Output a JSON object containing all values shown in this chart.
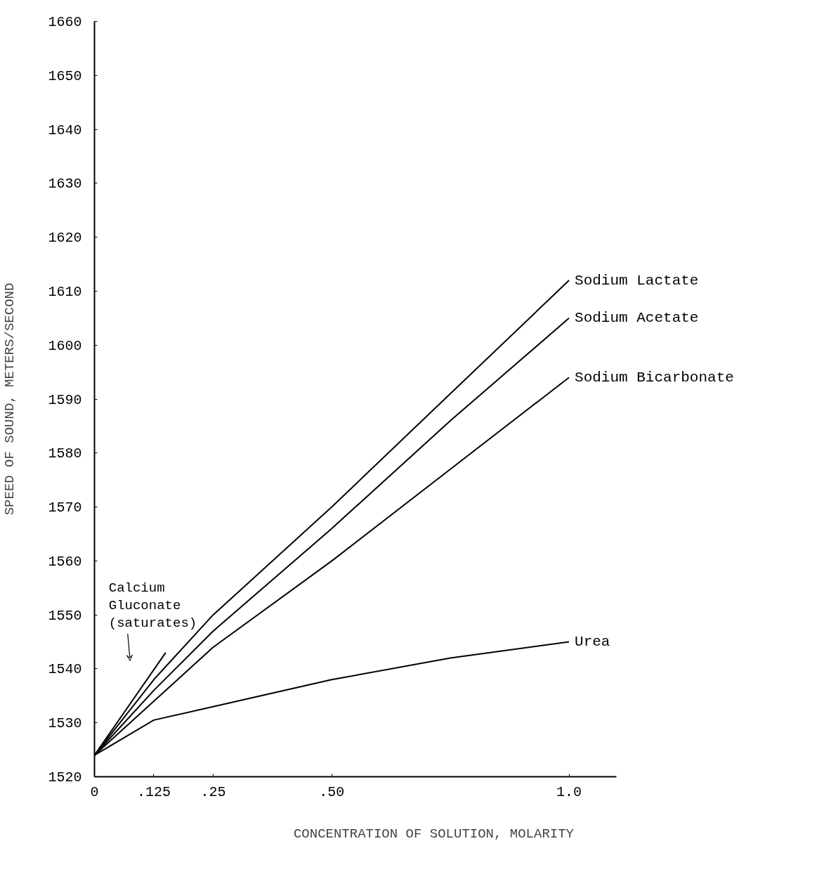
{
  "chart_data": {
    "type": "line",
    "xlabel": "CONCENTRATION OF SOLUTION, MOLARITY",
    "ylabel": "SPEED OF SOUND, METERS/SECOND",
    "xlim": [
      0,
      1.1
    ],
    "ylim": [
      1520,
      1660
    ],
    "xticks": [
      {
        "value": 0,
        "label": "0"
      },
      {
        "value": 0.125,
        "label": ".125"
      },
      {
        "value": 0.25,
        "label": ".25"
      },
      {
        "value": 0.5,
        "label": ".50"
      },
      {
        "value": 1.0,
        "label": "1.0"
      }
    ],
    "yticks": [
      1520,
      1530,
      1540,
      1550,
      1560,
      1570,
      1580,
      1590,
      1600,
      1610,
      1620,
      1630,
      1640,
      1650,
      1660
    ],
    "grid": false,
    "legend": false,
    "marker": "none",
    "line_style": "solid",
    "series": [
      {
        "name": "Calcium Gluconate (saturates)",
        "color": "#000000",
        "x": [
          0,
          0.15
        ],
        "values": [
          1524,
          1543
        ]
      },
      {
        "name": "Sodium Lactate",
        "color": "#000000",
        "x": [
          0,
          0.125,
          0.25,
          0.5,
          0.75,
          1.0
        ],
        "values": [
          1524,
          1538,
          1550,
          1570,
          1591,
          1612
        ]
      },
      {
        "name": "Sodium Acetate",
        "color": "#000000",
        "x": [
          0,
          0.125,
          0.25,
          0.5,
          0.75,
          1.0
        ],
        "values": [
          1524,
          1536,
          1547,
          1566,
          1586,
          1605
        ]
      },
      {
        "name": "Sodium Bicarbonate",
        "color": "#000000",
        "x": [
          0,
          0.125,
          0.25,
          0.5,
          0.75,
          1.0
        ],
        "values": [
          1524,
          1534,
          1544,
          1560,
          1577,
          1594
        ]
      },
      {
        "name": "Urea",
        "color": "#000000",
        "x": [
          0,
          0.125,
          0.25,
          0.5,
          0.75,
          1.0
        ],
        "values": [
          1524,
          1530.5,
          1533,
          1538,
          1542,
          1545
        ]
      }
    ]
  }
}
